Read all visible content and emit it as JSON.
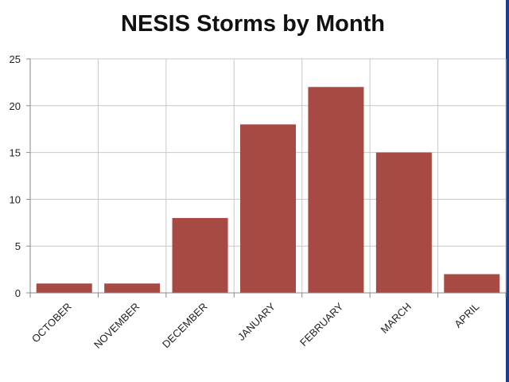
{
  "chart_data": {
    "type": "bar",
    "title": "NESIS Storms by Month",
    "xlabel": "",
    "ylabel": "",
    "categories": [
      "OCTOBER",
      "NOVEMBER",
      "DECEMBER",
      "JANUARY",
      "FEBRUARY",
      "MARCH",
      "APRIL"
    ],
    "values": [
      1,
      1,
      8,
      18,
      22,
      15,
      2
    ],
    "ylim": [
      0,
      25
    ],
    "yticks": [
      0,
      5,
      10,
      15,
      20,
      25
    ],
    "grid": true,
    "legend": "none",
    "bar_color": "#a84a44"
  }
}
